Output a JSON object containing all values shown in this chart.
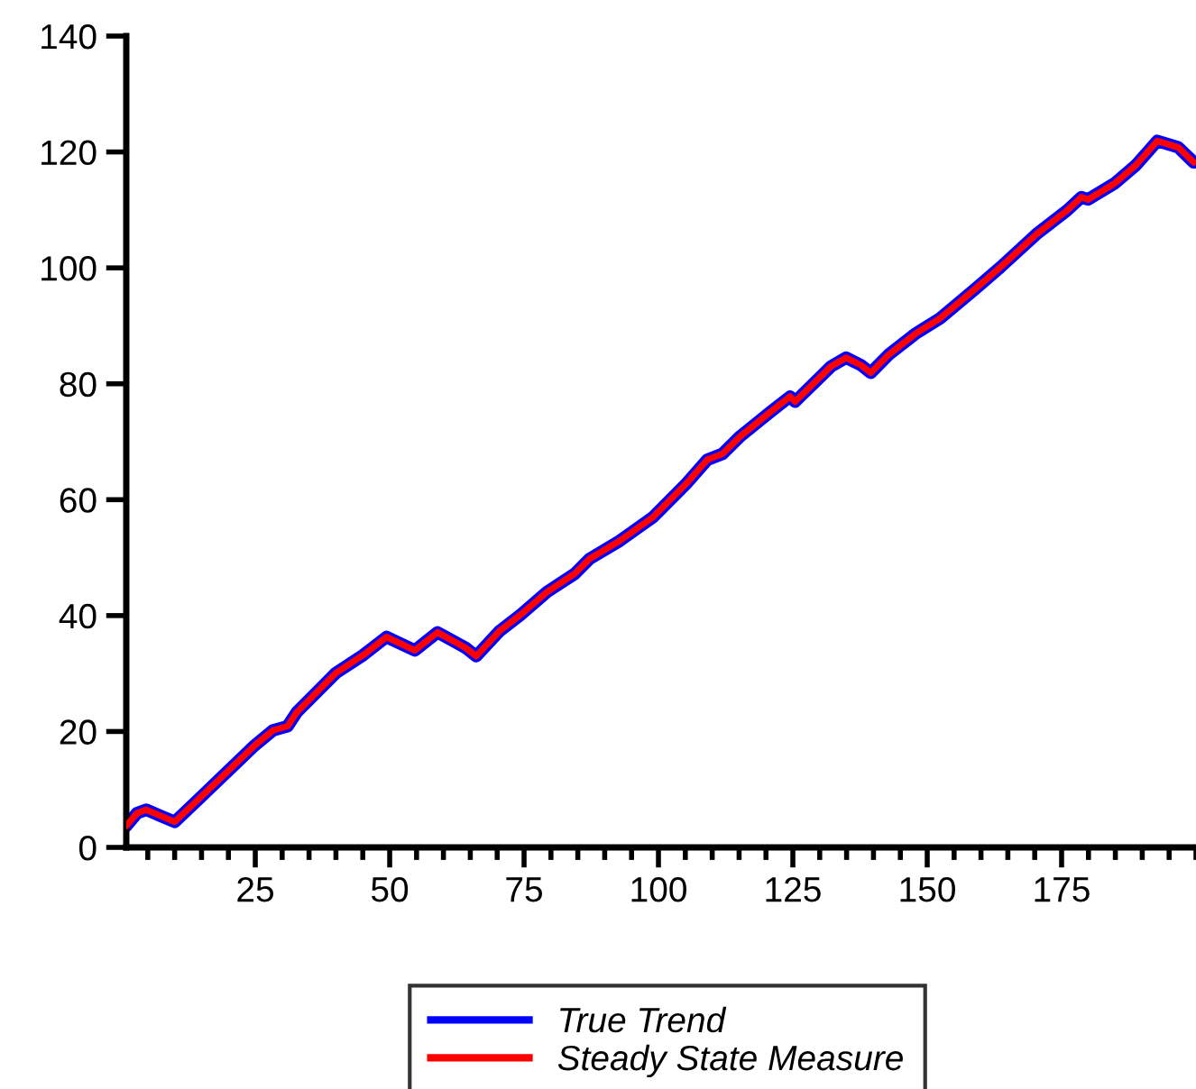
{
  "chart_data": {
    "type": "line",
    "x": [
      1,
      3,
      4.7,
      7.5,
      10,
      14.2,
      24.9,
      28.3,
      31,
      32.7,
      40,
      45.1,
      49.4,
      54.7,
      58.9,
      64.2,
      66.1,
      70.4,
      74.3,
      79.3,
      84.4,
      87.2,
      92.8,
      99,
      105.2,
      109.1,
      111.9,
      115.3,
      120.9,
      124.5,
      125.4,
      132.1,
      134.9,
      137.7,
      139.5,
      142.8,
      147.9,
      152.4,
      159.1,
      163.6,
      170.3,
      176,
      178.7,
      179.9,
      184.9,
      188.8,
      192.8,
      196.7,
      199.6
    ],
    "series": [
      {
        "name": "True Trend",
        "color": "#0000ff",
        "values": [
          3.7,
          5.9,
          6.5,
          5.4,
          4.4,
          8.1,
          17.6,
          20.2,
          20.9,
          23.3,
          30.1,
          33.2,
          36.3,
          34.0,
          37.1,
          34.4,
          33.0,
          37.3,
          40.1,
          44.1,
          47.2,
          49.8,
          52.9,
          57.0,
          62.8,
          66.9,
          67.9,
          71.0,
          75.2,
          77.8,
          76.9,
          83.0,
          84.5,
          83.2,
          81.9,
          85.0,
          88.7,
          91.3,
          96.5,
          100.1,
          105.8,
          109.9,
          112.2,
          111.8,
          114.6,
          117.7,
          121.9,
          120.8,
          118.2
        ]
      },
      {
        "name": "Steady State Measure",
        "color": "#ff0000",
        "values": [
          3.7,
          5.9,
          6.5,
          5.4,
          4.4,
          8.1,
          17.6,
          20.2,
          20.9,
          23.3,
          30.1,
          33.2,
          36.3,
          34.0,
          37.1,
          34.4,
          33.0,
          37.3,
          40.1,
          44.1,
          47.2,
          49.8,
          52.9,
          57.0,
          62.8,
          66.9,
          67.9,
          71.0,
          75.2,
          77.8,
          76.9,
          83.0,
          84.5,
          83.2,
          81.9,
          85.0,
          88.7,
          91.3,
          96.5,
          100.1,
          105.8,
          109.9,
          112.2,
          111.8,
          114.6,
          117.7,
          121.9,
          120.8,
          118.2
        ]
      }
    ],
    "xlim": [
      1,
      200
    ],
    "xticks": [
      25,
      50,
      75,
      100,
      125,
      150,
      175
    ],
    "ylim": [
      0,
      140
    ],
    "yticks": [
      0,
      20,
      40,
      60,
      80,
      100,
      120,
      140
    ],
    "grid": false,
    "legend": "bottom",
    "marker": "none",
    "line_style": "solid"
  }
}
